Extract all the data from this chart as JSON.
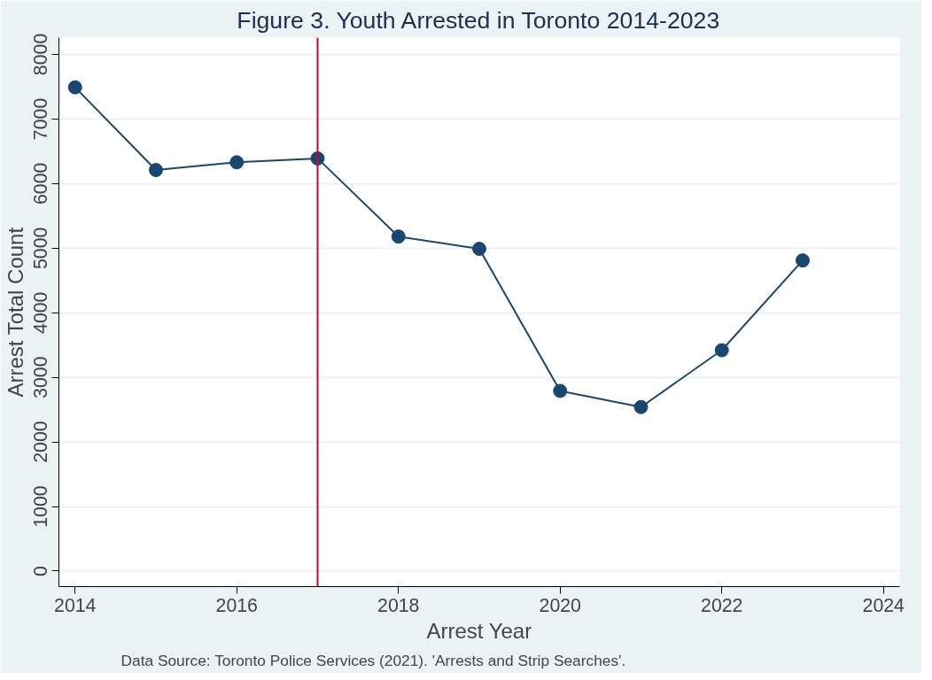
{
  "chart_data": {
    "type": "line",
    "title": "Figure 3. Youth Arrested in Toronto 2014-2023",
    "xlabel": "Arrest Year",
    "ylabel": "Arrest Total Count",
    "annotations": [
      "Data Source: Toronto Police Services (2021). 'Arrests and Strip Searches'."
    ],
    "x": [
      2014,
      2015,
      2016,
      2017,
      2018,
      2019,
      2020,
      2021,
      2022,
      2023
    ],
    "series": [
      {
        "color": "#1a476f",
        "values": [
          7490,
          6210,
          6330,
          6390,
          5180,
          4990,
          2790,
          2540,
          3420,
          4810
        ]
      }
    ],
    "xlim": [
      2013.8,
      2024.2
    ],
    "xticks": [
      2014,
      2016,
      2018,
      2020,
      2022,
      2024
    ],
    "ylim": [
      -240,
      8260
    ],
    "yticks": [
      0,
      1000,
      2000,
      3000,
      4000,
      5000,
      6000,
      7000,
      8000
    ],
    "ref_lines": [
      {
        "axis": "x",
        "value": 2017,
        "color": "#c10534"
      }
    ],
    "grid": "y",
    "marker": "circle",
    "line_style": "solid"
  }
}
